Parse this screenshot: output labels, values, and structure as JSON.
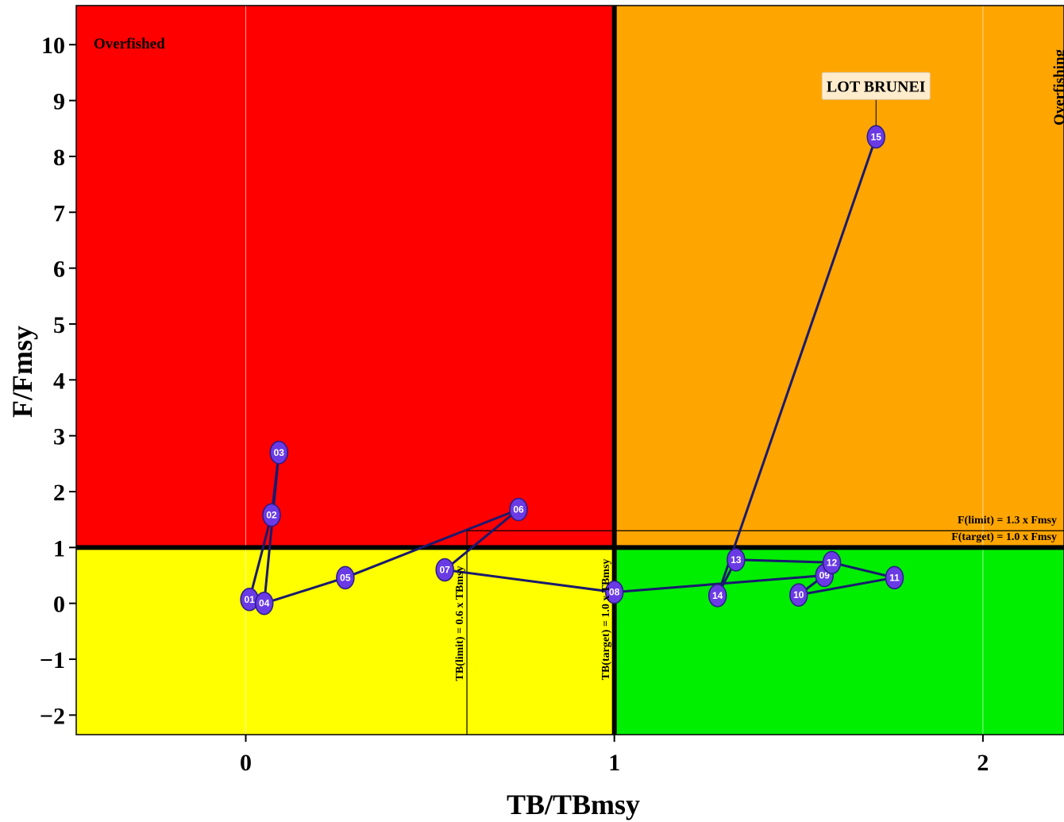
{
  "chart_data": {
    "type": "scatter",
    "xlabel": "TB/TBmsy",
    "ylabel": "F/Fmsy",
    "xlim": [
      -0.46,
      2.22
    ],
    "ylim": [
      -2.35,
      10.7
    ],
    "x_ticks": [
      "0",
      "1",
      "2"
    ],
    "y_ticks": [
      "10",
      "9",
      "8",
      "7",
      "6",
      "5",
      "4",
      "3",
      "2",
      "1",
      "0",
      "−1",
      "−2"
    ],
    "zones": {
      "overfished_label": "Overfished",
      "overfishing_label": "Overfishing"
    },
    "reference_lines": {
      "tb_limit_label": "TB(limit) = 0.6 x TBmsy",
      "tb_target_label": "TB(target) = 1.0 x TBmsy",
      "f_limit_label": "F(limit) = 1.3 x Fmsy",
      "f_target_label": "F(target) = 1.0 x Fmsy"
    },
    "last_point_label": "LOT BRUNEI",
    "points": [
      {
        "label": "01",
        "x": 0.01,
        "y": 0.07
      },
      {
        "label": "02",
        "x": 0.07,
        "y": 1.58
      },
      {
        "label": "03",
        "x": 0.09,
        "y": 2.7
      },
      {
        "label": "04",
        "x": 0.05,
        "y": 0.0
      },
      {
        "label": "05",
        "x": 0.27,
        "y": 0.46
      },
      {
        "label": "06",
        "x": 0.74,
        "y": 1.68
      },
      {
        "label": "07",
        "x": 0.54,
        "y": 0.6
      },
      {
        "label": "08",
        "x": 1.0,
        "y": 0.2
      },
      {
        "label": "14",
        "x": 1.28,
        "y": 0.14
      },
      {
        "label": "09",
        "x": 1.57,
        "y": 0.5
      },
      {
        "label": "10",
        "x": 1.5,
        "y": 0.15
      },
      {
        "label": "11",
        "x": 1.76,
        "y": 0.46
      },
      {
        "label": "12",
        "x": 1.59,
        "y": 0.73
      },
      {
        "label": "13",
        "x": 1.33,
        "y": 0.78
      },
      {
        "label": "15",
        "x": 1.71,
        "y": 8.35
      }
    ],
    "path_order": [
      "01",
      "02",
      "03",
      "04",
      "05",
      "06",
      "07",
      "08",
      "09",
      "10",
      "11",
      "12",
      "13",
      "14",
      "15"
    ],
    "colors": {
      "overfished_zone": "#ff0000",
      "overfishing_zone": "#ffa500",
      "safe_low_zone": "#ffff00",
      "healthy_zone": "#00ee00",
      "point_fill": "#6a3be4",
      "path_line": "#1a1a6e"
    }
  }
}
